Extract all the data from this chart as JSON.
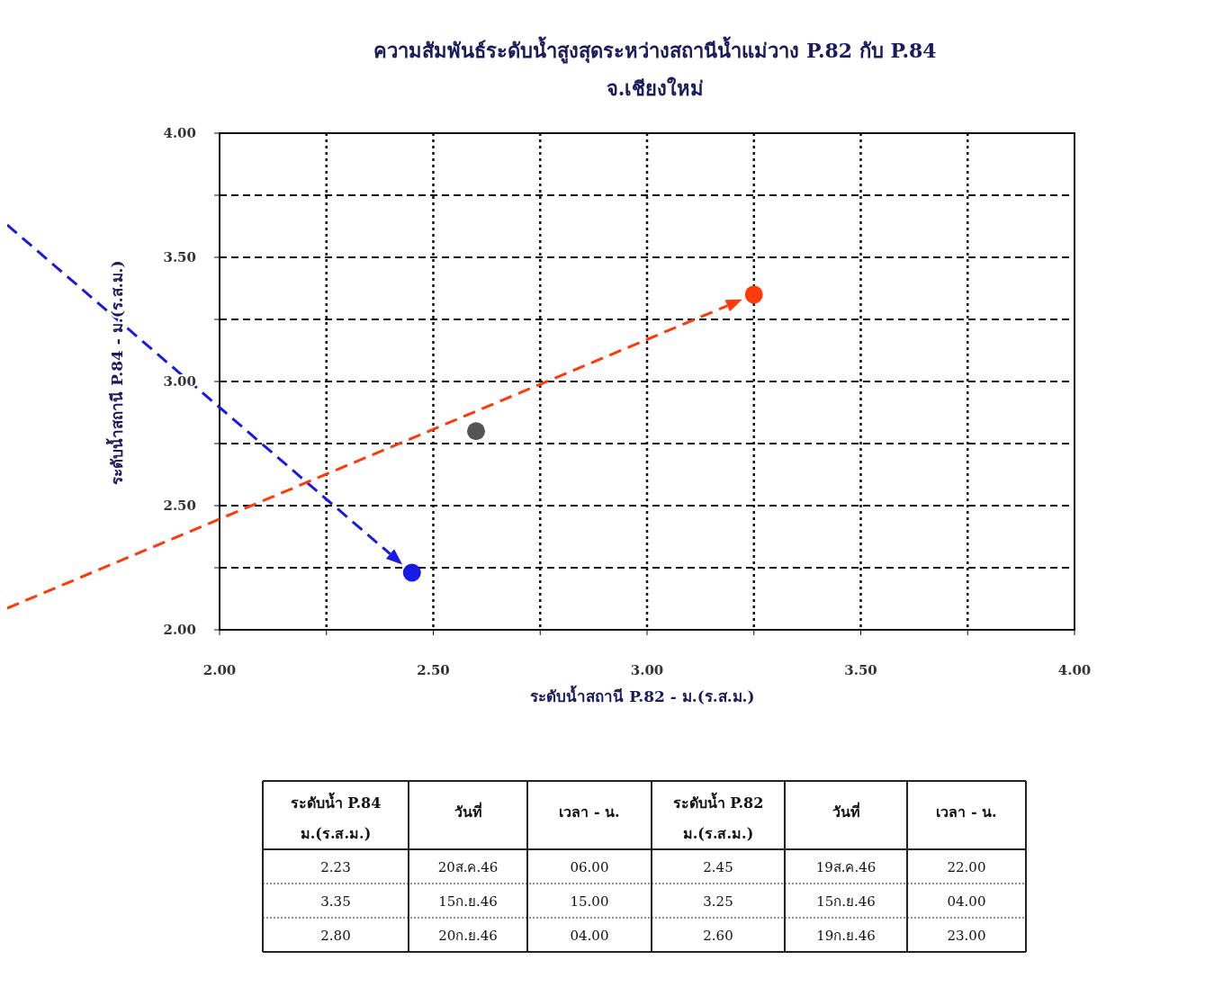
{
  "chart_data": {
    "type": "scatter",
    "title": "ความสัมพันธ์ระดับน้ำสูงสุดระหว่างสถานีน้ำแม่วาง P.82 กับ P.84",
    "subtitle": "จ.เชียงใหม่",
    "xlabel": "ระดับน้ำสถานี P.82 - ม.(ร.ส.ม.)",
    "ylabel": "ระดับน้ำสถานี P.84 - ม.(ร.ส.ม.)",
    "series": [
      {
        "x": [
          2.45,
          3.25,
          2.6
        ],
        "values": [
          2.23,
          3.35,
          2.8
        ],
        "colors": [
          "#1a1ae6",
          "#ff3a0a",
          "#555555"
        ]
      }
    ],
    "xlim": [
      2,
      4
    ],
    "ylim": [
      2,
      4
    ],
    "xticks": [
      {
        "value": 2,
        "label": "2.00"
      },
      {
        "value": 2.25,
        "label": null
      },
      {
        "value": 2.5,
        "label": "2.50"
      },
      {
        "value": 2.75,
        "label": null
      },
      {
        "value": 3,
        "label": "3.00"
      },
      {
        "value": 3.25,
        "label": null
      },
      {
        "value": 3.5,
        "label": "3.50"
      },
      {
        "value": 3.75,
        "label": null
      },
      {
        "value": 4,
        "label": "4.00"
      }
    ],
    "yticks": [
      {
        "value": 2,
        "label": "2.00"
      },
      {
        "value": 2.25,
        "label": null
      },
      {
        "value": 2.5,
        "label": "2.50"
      },
      {
        "value": 2.75,
        "label": null
      },
      {
        "value": 3,
        "label": "3.00"
      },
      {
        "value": 3.25,
        "label": null
      },
      {
        "value": 3.5,
        "label": "3.50"
      },
      {
        "value": 3.75,
        "label": null
      },
      {
        "value": 4,
        "label": "4.00"
      }
    ],
    "grid": true,
    "marker": "circle",
    "annotations": [
      "ระดับน้ำ P.84 ม.(ร.ส.ม.)",
      "วันที่",
      "เวลา - น.",
      "ระดับน้ำ P.82 ม.(ร.ส.ม.)",
      "วันที่",
      "เวลา - น.",
      "2.23",
      "20ส.ค.46",
      "06.00",
      "2.45",
      "19ส.ค.46",
      "22.00",
      "3.35",
      "15ก.ย.46",
      "15.00",
      "3.25",
      "15ก.ย.46",
      "04.00",
      "2.80",
      "20ก.ย.46",
      "04.00",
      "2.60",
      "19ก.ย.46",
      "23.00"
    ]
  }
}
